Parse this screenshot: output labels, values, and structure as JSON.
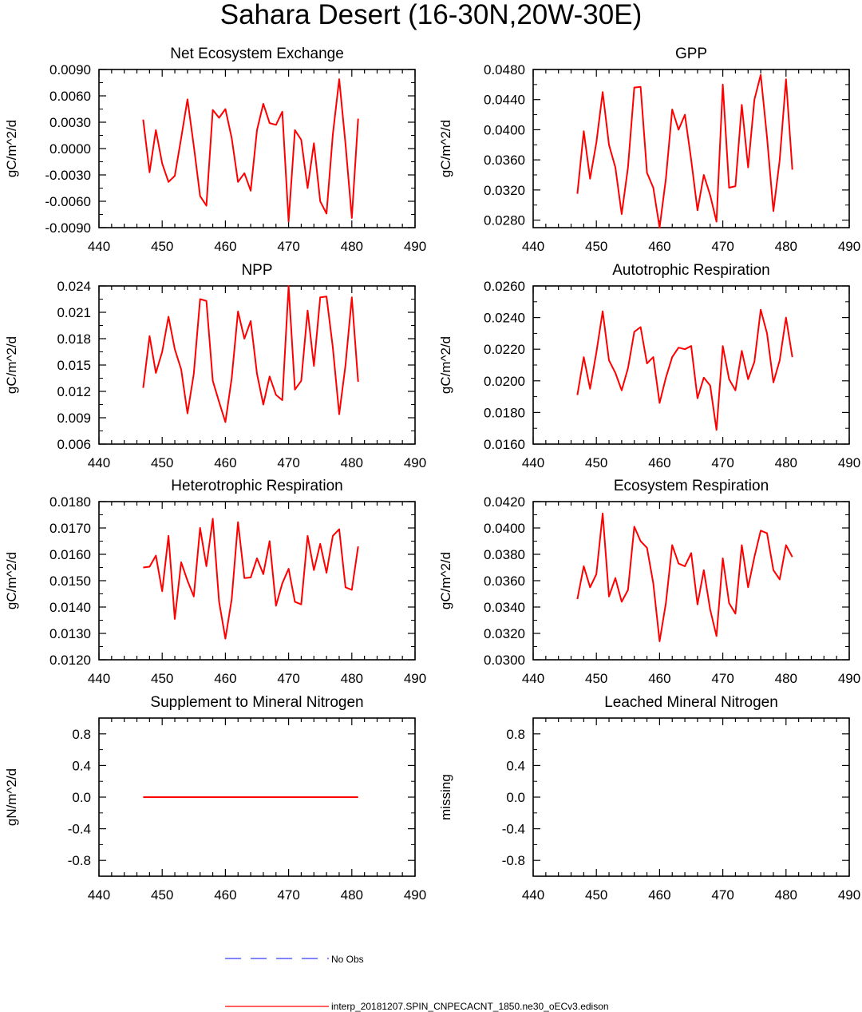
{
  "title": "Sahara Desert (16-30N,20W-30E)",
  "chart_data": [
    {
      "type": "line",
      "title": "Net Ecosystem Exchange",
      "ylabel": "gC/m^2/d",
      "xlim": [
        440,
        490
      ],
      "xticks": [
        440,
        450,
        460,
        470,
        480,
        490
      ],
      "ylim": [
        -0.009,
        0.009
      ],
      "yticks": [
        -0.009,
        -0.006,
        -0.003,
        0.0,
        0.003,
        0.006,
        0.009
      ],
      "ytick_labels": [
        "-0.0090",
        "-0.0060",
        "-0.0030",
        "0.0000",
        "0.0030",
        "0.0060",
        "0.0090"
      ],
      "series": [
        {
          "name": "interp_20181207.SPIN_CNPECACNT_1850.ne30_oECv3.edison",
          "x": [
            447,
            448,
            449,
            450,
            451,
            452,
            453,
            454,
            455,
            456,
            457,
            458,
            459,
            460,
            461,
            462,
            463,
            464,
            465,
            466,
            467,
            468,
            469,
            470,
            471,
            472,
            473,
            474,
            475,
            476,
            477,
            478,
            479,
            480,
            481
          ],
          "values": [
            0.0033,
            -0.0027,
            0.0021,
            -0.0017,
            -0.0038,
            -0.0031,
            0.0012,
            0.0056,
            0.0003,
            -0.0054,
            -0.0065,
            0.0044,
            0.0035,
            0.0045,
            0.0012,
            -0.0038,
            -0.0028,
            -0.0048,
            0.0021,
            0.0051,
            0.0029,
            0.0027,
            0.0042,
            -0.0083,
            0.0021,
            0.001,
            -0.0045,
            0.0006,
            -0.006,
            -0.0074,
            0.0016,
            0.0079,
            0.0005,
            -0.0079,
            0.0034
          ]
        }
      ]
    },
    {
      "type": "line",
      "title": "GPP",
      "ylabel": "gC/m^2/d",
      "xlim": [
        440,
        490
      ],
      "xticks": [
        440,
        450,
        460,
        470,
        480,
        490
      ],
      "ylim": [
        0.027,
        0.048
      ],
      "yticks": [
        0.028,
        0.032,
        0.036,
        0.04,
        0.044,
        0.048
      ],
      "ytick_labels": [
        "0.0280",
        "0.0320",
        "0.0360",
        "0.0400",
        "0.0440",
        "0.0480"
      ],
      "series": [
        {
          "name": "interp_20181207.SPIN_CNPECACNT_1850.ne30_oECv3.edison",
          "x": [
            447,
            448,
            449,
            450,
            451,
            452,
            453,
            454,
            455,
            456,
            457,
            458,
            459,
            460,
            461,
            462,
            463,
            464,
            465,
            466,
            467,
            468,
            469,
            470,
            471,
            472,
            473,
            474,
            475,
            476,
            477,
            478,
            479,
            480,
            481
          ],
          "values": [
            0.0315,
            0.0398,
            0.0335,
            0.0383,
            0.045,
            0.038,
            0.035,
            0.0288,
            0.035,
            0.0456,
            0.0457,
            0.0343,
            0.0323,
            0.027,
            0.0335,
            0.0427,
            0.04,
            0.042,
            0.036,
            0.0293,
            0.034,
            0.0313,
            0.0278,
            0.046,
            0.0323,
            0.0325,
            0.0433,
            0.035,
            0.044,
            0.0473,
            0.039,
            0.0292,
            0.036,
            0.0467,
            0.0347
          ]
        }
      ]
    },
    {
      "type": "line",
      "title": "NPP",
      "ylabel": "gC/m^2/d",
      "xlim": [
        440,
        490
      ],
      "xticks": [
        440,
        450,
        460,
        470,
        480,
        490
      ],
      "ylim": [
        0.006,
        0.024
      ],
      "yticks": [
        0.006,
        0.009,
        0.012,
        0.015,
        0.018,
        0.021,
        0.024
      ],
      "ytick_labels": [
        "0.006",
        "0.009",
        "0.012",
        "0.015",
        "0.018",
        "0.021",
        "0.024"
      ],
      "series": [
        {
          "name": "interp_20181207.SPIN_CNPECACNT_1850.ne30_oECv3.edison",
          "x": [
            447,
            448,
            449,
            450,
            451,
            452,
            453,
            454,
            455,
            456,
            457,
            458,
            459,
            460,
            461,
            462,
            463,
            464,
            465,
            466,
            467,
            468,
            469,
            470,
            471,
            472,
            473,
            474,
            475,
            476,
            477,
            478,
            479,
            480,
            481
          ],
          "values": [
            0.0124,
            0.0183,
            0.0141,
            0.0165,
            0.0205,
            0.0168,
            0.0145,
            0.0095,
            0.014,
            0.0225,
            0.0223,
            0.0132,
            0.0108,
            0.0085,
            0.0135,
            0.0211,
            0.018,
            0.02,
            0.014,
            0.0105,
            0.0137,
            0.0116,
            0.011,
            0.024,
            0.0122,
            0.0132,
            0.0212,
            0.0149,
            0.0227,
            0.0228,
            0.017,
            0.0094,
            0.015,
            0.0227,
            0.0131
          ]
        }
      ]
    },
    {
      "type": "line",
      "title": "Autotrophic Respiration",
      "ylabel": "gC/m^2/d",
      "xlim": [
        440,
        490
      ],
      "xticks": [
        440,
        450,
        460,
        470,
        480,
        490
      ],
      "ylim": [
        0.016,
        0.026
      ],
      "yticks": [
        0.016,
        0.018,
        0.02,
        0.022,
        0.024,
        0.026
      ],
      "ytick_labels": [
        "0.0160",
        "0.0180",
        "0.0200",
        "0.0220",
        "0.0240",
        "0.0260"
      ],
      "series": [
        {
          "name": "interp_20181207.SPIN_CNPECACNT_1850.ne30_oECv3.edison",
          "x": [
            447,
            448,
            449,
            450,
            451,
            452,
            453,
            454,
            455,
            456,
            457,
            458,
            459,
            460,
            461,
            462,
            463,
            464,
            465,
            466,
            467,
            468,
            469,
            470,
            471,
            472,
            473,
            474,
            475,
            476,
            477,
            478,
            479,
            480,
            481
          ],
          "values": [
            0.0191,
            0.0215,
            0.0195,
            0.0218,
            0.0244,
            0.0213,
            0.0205,
            0.0194,
            0.0208,
            0.0231,
            0.0234,
            0.0211,
            0.0215,
            0.0186,
            0.0202,
            0.0215,
            0.0221,
            0.022,
            0.0222,
            0.0189,
            0.0202,
            0.0197,
            0.0169,
            0.0222,
            0.0201,
            0.0194,
            0.0219,
            0.0201,
            0.0212,
            0.0245,
            0.023,
            0.0199,
            0.0213,
            0.024,
            0.0215
          ]
        }
      ]
    },
    {
      "type": "line",
      "title": "Heterotrophic Respiration",
      "ylabel": "gC/m^2/d",
      "xlim": [
        440,
        490
      ],
      "xticks": [
        440,
        450,
        460,
        470,
        480,
        490
      ],
      "ylim": [
        0.012,
        0.018
      ],
      "yticks": [
        0.012,
        0.013,
        0.014,
        0.015,
        0.016,
        0.017,
        0.018
      ],
      "ytick_labels": [
        "0.0120",
        "0.0130",
        "0.0140",
        "0.0150",
        "0.0160",
        "0.0170",
        "0.0180"
      ],
      "series": [
        {
          "name": "interp_20181207.SPIN_CNPECACNT_1850.ne30_oECv3.edison",
          "x": [
            447,
            448,
            449,
            450,
            451,
            452,
            453,
            454,
            455,
            456,
            457,
            458,
            459,
            460,
            461,
            462,
            463,
            464,
            465,
            466,
            467,
            468,
            469,
            470,
            471,
            472,
            473,
            474,
            475,
            476,
            477,
            478,
            479,
            480,
            481
          ],
          "values": [
            0.0155,
            0.01553,
            0.01595,
            0.0146,
            0.0167,
            0.01355,
            0.0157,
            0.015,
            0.0144,
            0.017,
            0.01555,
            0.01735,
            0.0142,
            0.0128,
            0.0143,
            0.01722,
            0.0151,
            0.01512,
            0.01585,
            0.01525,
            0.0165,
            0.01405,
            0.0149,
            0.01545,
            0.0142,
            0.0141,
            0.0167,
            0.0154,
            0.0164,
            0.0153,
            0.0167,
            0.01695,
            0.01475,
            0.01465,
            0.0163
          ]
        }
      ]
    },
    {
      "type": "line",
      "title": "Ecosystem Respiration",
      "ylabel": "gC/m^2/d",
      "xlim": [
        440,
        490
      ],
      "xticks": [
        440,
        450,
        460,
        470,
        480,
        490
      ],
      "ylim": [
        0.03,
        0.042
      ],
      "yticks": [
        0.03,
        0.032,
        0.034,
        0.036,
        0.038,
        0.04,
        0.042
      ],
      "ytick_labels": [
        "0.0300",
        "0.0320",
        "0.0340",
        "0.0360",
        "0.0380",
        "0.0400",
        "0.0420"
      ],
      "series": [
        {
          "name": "interp_20181207.SPIN_CNPECACNT_1850.ne30_oECv3.edison",
          "x": [
            447,
            448,
            449,
            450,
            451,
            452,
            453,
            454,
            455,
            456,
            457,
            458,
            459,
            460,
            461,
            462,
            463,
            464,
            465,
            466,
            467,
            468,
            469,
            470,
            471,
            472,
            473,
            474,
            475,
            476,
            477,
            478,
            479,
            480,
            481
          ],
          "values": [
            0.0346,
            0.0371,
            0.0355,
            0.0365,
            0.0411,
            0.0348,
            0.0362,
            0.0344,
            0.0353,
            0.0401,
            0.039,
            0.0385,
            0.0358,
            0.0314,
            0.0343,
            0.0387,
            0.0373,
            0.0371,
            0.0381,
            0.0342,
            0.0368,
            0.0338,
            0.0318,
            0.0377,
            0.0343,
            0.0335,
            0.0387,
            0.0355,
            0.0378,
            0.0398,
            0.0396,
            0.0368,
            0.0361,
            0.0387,
            0.0378
          ]
        }
      ]
    },
    {
      "type": "line",
      "title": "Supplement to Mineral Nitrogen",
      "ylabel": "gN/m^2/d",
      "xlim": [
        440,
        490
      ],
      "xticks": [
        440,
        450,
        460,
        470,
        480,
        490
      ],
      "ylim": [
        -1.0,
        1.0
      ],
      "yticks": [
        -0.8,
        -0.4,
        0.0,
        0.4,
        0.8
      ],
      "ytick_labels": [
        "-0.8",
        "-0.4",
        "0.0",
        "0.4",
        "0.8"
      ],
      "series": [
        {
          "name": "interp_20181207.SPIN_CNPECACNT_1850.ne30_oECv3.edison",
          "x": [
            447,
            448,
            449,
            450,
            451,
            452,
            453,
            454,
            455,
            456,
            457,
            458,
            459,
            460,
            461,
            462,
            463,
            464,
            465,
            466,
            467,
            468,
            469,
            470,
            471,
            472,
            473,
            474,
            475,
            476,
            477,
            478,
            479,
            480,
            481
          ],
          "values": [
            0,
            0,
            0,
            0,
            0,
            0,
            0,
            0,
            0,
            0,
            0,
            0,
            0,
            0,
            0,
            0,
            0,
            0,
            0,
            0,
            0,
            0,
            0,
            0,
            0,
            0,
            0,
            0,
            0,
            0,
            0,
            0,
            0,
            0,
            0
          ]
        }
      ]
    },
    {
      "type": "line",
      "title": "Leached Mineral Nitrogen",
      "ylabel": "missing",
      "xlim": [
        440,
        490
      ],
      "xticks": [
        440,
        450,
        460,
        470,
        480,
        490
      ],
      "ylim": [
        -1.0,
        1.0
      ],
      "yticks": [
        -0.8,
        -0.4,
        0.0,
        0.4,
        0.8
      ],
      "ytick_labels": [
        "-0.8",
        "-0.4",
        "0.0",
        "0.4",
        "0.8"
      ],
      "series": []
    }
  ],
  "legend": [
    {
      "label": "No Obs",
      "color": "#3a3aff",
      "style": "dashed"
    },
    {
      "label": "interp_20181207.SPIN_CNPECACNT_1850.ne30_oECv3.edison",
      "color": "#ff0000",
      "style": "solid"
    }
  ]
}
